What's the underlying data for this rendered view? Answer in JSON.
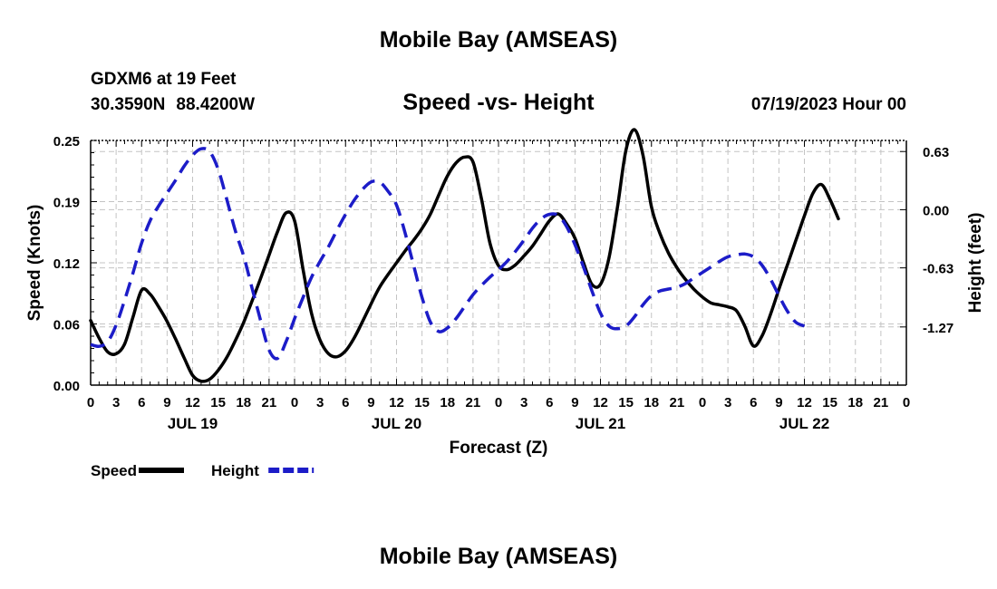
{
  "header": {
    "title": "Mobile Bay (AMSEAS)",
    "station": "GDXM6 at 19 Feet",
    "lat": "30.3590N",
    "lon": "88.4200W",
    "subtitle": "Speed -vs- Height",
    "datetime": "07/19/2023 Hour 00"
  },
  "footer": {
    "title": "Mobile Bay (AMSEAS)"
  },
  "chart_data": {
    "type": "line",
    "xlabel": "Forecast (Z)",
    "ylabel_left": "Speed (Knots)",
    "ylabel_right": "Height (feet)",
    "x_range_hours": [
      0,
      96
    ],
    "hour_tick_labels": [
      "0",
      "3",
      "6",
      "9",
      "12",
      "15",
      "18",
      "21",
      "0",
      "3",
      "6",
      "9",
      "12",
      "15",
      "18",
      "21",
      "0",
      "3",
      "6",
      "9",
      "12",
      "15",
      "18",
      "21",
      "0",
      "3",
      "6",
      "9",
      "12",
      "15",
      "18",
      "21",
      "0"
    ],
    "date_labels": [
      {
        "label": "JUL 19",
        "hour": 12
      },
      {
        "label": "JUL 20",
        "hour": 36
      },
      {
        "label": "JUL 21",
        "hour": 60
      },
      {
        "label": "JUL 22",
        "hour": 84
      }
    ],
    "left_axis": {
      "ylim": [
        0,
        0.25
      ],
      "ticks": [
        0,
        0.0625,
        0.125,
        0.1875,
        0.25
      ],
      "tick_labels": [
        "0.00",
        "0.06",
        "0.12",
        "0.19",
        "0.25"
      ]
    },
    "right_axis": {
      "ylim": [
        -1.9,
        0.75
      ],
      "ticks": [
        0.63,
        0.0,
        -0.63,
        -1.27
      ],
      "tick_labels": [
        "0.63",
        "0.00",
        "-0.63",
        "-1.27"
      ]
    },
    "legend": [
      {
        "name": "Speed",
        "color": "#000000",
        "dash": "solid"
      },
      {
        "name": "Height",
        "color": "#1c1cc8",
        "dash": "dashed"
      }
    ],
    "series": [
      {
        "name": "Speed",
        "axis": "left",
        "color": "#000000",
        "points": [
          [
            0,
            0.066
          ],
          [
            1,
            0.048
          ],
          [
            2,
            0.034
          ],
          [
            3,
            0.032
          ],
          [
            4,
            0.042
          ],
          [
            5,
            0.07
          ],
          [
            6,
            0.097
          ],
          [
            7,
            0.093
          ],
          [
            8,
            0.08
          ],
          [
            9,
            0.065
          ],
          [
            10,
            0.047
          ],
          [
            11,
            0.028
          ],
          [
            12,
            0.01
          ],
          [
            13,
            0.004
          ],
          [
            14,
            0.006
          ],
          [
            15,
            0.015
          ],
          [
            16,
            0.028
          ],
          [
            17,
            0.045
          ],
          [
            18,
            0.064
          ],
          [
            19,
            0.086
          ],
          [
            20,
            0.109
          ],
          [
            21,
            0.133
          ],
          [
            22,
            0.157
          ],
          [
            23,
            0.176
          ],
          [
            24,
            0.168
          ],
          [
            25,
            0.118
          ],
          [
            26,
            0.073
          ],
          [
            27,
            0.046
          ],
          [
            28,
            0.032
          ],
          [
            29,
            0.029
          ],
          [
            30,
            0.035
          ],
          [
            31,
            0.048
          ],
          [
            32,
            0.065
          ],
          [
            33,
            0.083
          ],
          [
            34,
            0.1
          ],
          [
            35,
            0.113
          ],
          [
            36,
            0.125
          ],
          [
            37,
            0.137
          ],
          [
            38,
            0.148
          ],
          [
            39,
            0.16
          ],
          [
            40,
            0.175
          ],
          [
            41,
            0.195
          ],
          [
            42,
            0.214
          ],
          [
            43,
            0.227
          ],
          [
            44,
            0.233
          ],
          [
            45,
            0.228
          ],
          [
            46,
            0.19
          ],
          [
            47,
            0.145
          ],
          [
            48,
            0.122
          ],
          [
            49,
            0.118
          ],
          [
            50,
            0.123
          ],
          [
            51,
            0.132
          ],
          [
            52,
            0.142
          ],
          [
            53,
            0.155
          ],
          [
            54,
            0.168
          ],
          [
            55,
            0.175
          ],
          [
            56,
            0.165
          ],
          [
            57,
            0.15
          ],
          [
            58,
            0.125
          ],
          [
            59,
            0.103
          ],
          [
            60,
            0.103
          ],
          [
            61,
            0.13
          ],
          [
            62,
            0.182
          ],
          [
            63,
            0.24
          ],
          [
            64,
            0.261
          ],
          [
            65,
            0.235
          ],
          [
            66,
            0.182
          ],
          [
            67,
            0.155
          ],
          [
            68,
            0.135
          ],
          [
            69,
            0.12
          ],
          [
            70,
            0.108
          ],
          [
            71,
            0.098
          ],
          [
            72,
            0.09
          ],
          [
            73,
            0.084
          ],
          [
            74,
            0.082
          ],
          [
            75,
            0.08
          ],
          [
            76,
            0.076
          ],
          [
            77,
            0.06
          ],
          [
            78,
            0.04
          ],
          [
            79,
            0.05
          ],
          [
            80,
            0.072
          ],
          [
            81,
            0.098
          ],
          [
            82,
            0.123
          ],
          [
            83,
            0.148
          ],
          [
            84,
            0.173
          ],
          [
            85,
            0.196
          ],
          [
            86,
            0.205
          ],
          [
            87,
            0.19
          ],
          [
            88,
            0.17
          ]
        ]
      },
      {
        "name": "Height",
        "axis": "right",
        "color": "#1c1cc8",
        "points": [
          [
            0,
            -1.46
          ],
          [
            1,
            -1.48
          ],
          [
            2,
            -1.43
          ],
          [
            3,
            -1.25
          ],
          [
            4,
            -0.98
          ],
          [
            5,
            -0.68
          ],
          [
            6,
            -0.36
          ],
          [
            7,
            -0.12
          ],
          [
            8,
            0.04
          ],
          [
            9,
            0.18
          ],
          [
            10,
            0.32
          ],
          [
            11,
            0.47
          ],
          [
            12,
            0.59
          ],
          [
            13,
            0.66
          ],
          [
            14,
            0.63
          ],
          [
            15,
            0.44
          ],
          [
            16,
            0.12
          ],
          [
            17,
            -0.22
          ],
          [
            18,
            -0.5
          ],
          [
            19,
            -0.85
          ],
          [
            20,
            -1.2
          ],
          [
            21,
            -1.52
          ],
          [
            22,
            -1.61
          ],
          [
            23,
            -1.43
          ],
          [
            24,
            -1.18
          ],
          [
            25,
            -0.95
          ],
          [
            26,
            -0.73
          ],
          [
            27,
            -0.56
          ],
          [
            28,
            -0.4
          ],
          [
            29,
            -0.22
          ],
          [
            30,
            -0.05
          ],
          [
            31,
            0.1
          ],
          [
            32,
            0.22
          ],
          [
            33,
            0.3
          ],
          [
            34,
            0.3
          ],
          [
            35,
            0.2
          ],
          [
            36,
            0.05
          ],
          [
            37,
            -0.25
          ],
          [
            38,
            -0.6
          ],
          [
            39,
            -0.95
          ],
          [
            40,
            -1.22
          ],
          [
            41,
            -1.32
          ],
          [
            42,
            -1.28
          ],
          [
            43,
            -1.18
          ],
          [
            44,
            -1.05
          ],
          [
            45,
            -0.92
          ],
          [
            46,
            -0.82
          ],
          [
            47,
            -0.73
          ],
          [
            48,
            -0.65
          ],
          [
            49,
            -0.56
          ],
          [
            50,
            -0.45
          ],
          [
            51,
            -0.33
          ],
          [
            52,
            -0.2
          ],
          [
            53,
            -0.1
          ],
          [
            54,
            -0.05
          ],
          [
            55,
            -0.06
          ],
          [
            56,
            -0.18
          ],
          [
            57,
            -0.38
          ],
          [
            58,
            -0.62
          ],
          [
            59,
            -0.88
          ],
          [
            60,
            -1.12
          ],
          [
            61,
            -1.26
          ],
          [
            62,
            -1.29
          ],
          [
            63,
            -1.26
          ],
          [
            64,
            -1.16
          ],
          [
            65,
            -1.03
          ],
          [
            66,
            -0.93
          ],
          [
            67,
            -0.88
          ],
          [
            68,
            -0.86
          ],
          [
            69,
            -0.84
          ],
          [
            70,
            -0.8
          ],
          [
            71,
            -0.74
          ],
          [
            72,
            -0.68
          ],
          [
            73,
            -0.62
          ],
          [
            74,
            -0.56
          ],
          [
            75,
            -0.51
          ],
          [
            76,
            -0.49
          ],
          [
            77,
            -0.48
          ],
          [
            78,
            -0.51
          ],
          [
            79,
            -0.6
          ],
          [
            80,
            -0.75
          ],
          [
            81,
            -0.93
          ],
          [
            82,
            -1.1
          ],
          [
            83,
            -1.22
          ],
          [
            84,
            -1.26
          ]
        ]
      }
    ]
  }
}
